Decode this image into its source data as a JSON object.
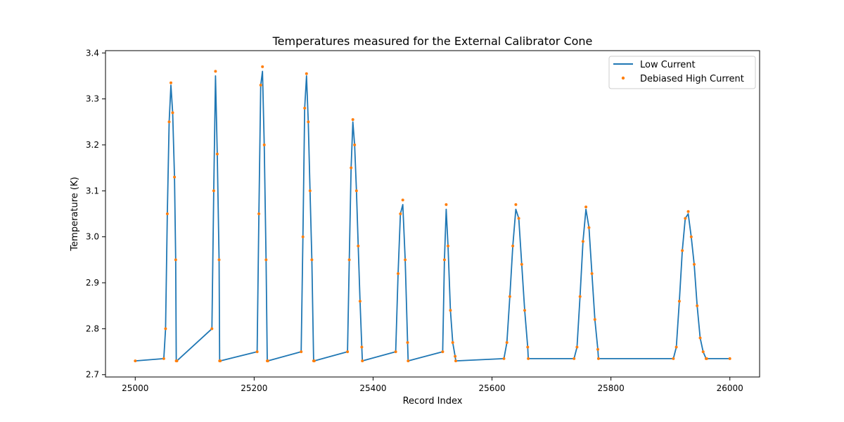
{
  "chart_data": {
    "type": "line",
    "title": "Temperatures measured for the External Calibrator Cone",
    "xlabel": "Record Index",
    "ylabel": "Temperature (K)",
    "xlim": [
      24950,
      26050
    ],
    "ylim": [
      2.695,
      3.405
    ],
    "x_ticks": [
      25000,
      25200,
      25400,
      25600,
      25800,
      26000
    ],
    "x_tick_labels": [
      "25000",
      "25200",
      "25400",
      "25600",
      "25800",
      "26000"
    ],
    "y_ticks": [
      2.7,
      2.8,
      2.9,
      3.0,
      3.1,
      3.2,
      3.3,
      3.4
    ],
    "y_tick_labels": [
      "2.7",
      "2.8",
      "2.9",
      "3.0",
      "3.1",
      "3.2",
      "3.3",
      "3.4"
    ],
    "grid": false,
    "legend_position": "top-right",
    "series": [
      {
        "name": "Low Current",
        "style": "line",
        "color": "#1f77b4",
        "x": [
          25000,
          25048,
          25051,
          25054,
          25057,
          25060,
          25063,
          25066,
          25068,
          25069,
          25070,
          25129,
          25132,
          25135,
          25138,
          25141,
          25142,
          25143,
          25205,
          25208,
          25211,
          25214,
          25217,
          25220,
          25222,
          25223,
          25279,
          25282,
          25285,
          25288,
          25291,
          25294,
          25297,
          25300,
          25301,
          25357,
          25360,
          25363,
          25366,
          25369,
          25372,
          25375,
          25378,
          25381,
          25382,
          25438,
          25442,
          25446,
          25450,
          25454,
          25458,
          25459,
          25517,
          25520,
          25523,
          25526,
          25530,
          25534,
          25538,
          25539,
          25620,
          25625,
          25630,
          25635,
          25640,
          25645,
          25650,
          25655,
          25660,
          25661,
          25738,
          25743,
          25748,
          25753,
          25758,
          25763,
          25768,
          25773,
          25778,
          25779,
          25905,
          25910,
          25915,
          25920,
          25925,
          25930,
          25935,
          25940,
          25945,
          25950,
          25955,
          25960,
          25961,
          26000
        ],
        "y": [
          2.73,
          2.735,
          2.8,
          3.05,
          3.25,
          3.33,
          3.27,
          3.13,
          2.95,
          2.73,
          2.73,
          2.8,
          3.1,
          3.35,
          3.18,
          2.95,
          2.73,
          2.73,
          2.75,
          3.05,
          3.33,
          3.36,
          3.2,
          2.95,
          2.73,
          2.73,
          2.75,
          3.0,
          3.28,
          3.35,
          3.25,
          3.1,
          2.95,
          2.73,
          2.73,
          2.75,
          2.95,
          3.15,
          3.25,
          3.2,
          3.1,
          2.98,
          2.86,
          2.76,
          2.73,
          2.75,
          2.92,
          3.05,
          3.07,
          2.95,
          2.77,
          2.73,
          2.75,
          2.95,
          3.06,
          2.98,
          2.84,
          2.77,
          2.74,
          2.73,
          2.735,
          2.77,
          2.87,
          2.98,
          3.06,
          3.04,
          2.94,
          2.84,
          2.76,
          2.735,
          2.735,
          2.76,
          2.87,
          2.99,
          3.06,
          3.02,
          2.92,
          2.82,
          2.755,
          2.735,
          2.735,
          2.76,
          2.86,
          2.97,
          3.04,
          3.05,
          3.0,
          2.94,
          2.85,
          2.78,
          2.75,
          2.735,
          2.735,
          2.735
        ]
      },
      {
        "name": "Debiased High Current",
        "style": "scatter",
        "color": "#ff7f0e",
        "x": [
          25000,
          25048,
          25051,
          25054,
          25057,
          25060,
          25063,
          25066,
          25068,
          25069,
          25070,
          25129,
          25132,
          25135,
          25138,
          25141,
          25142,
          25143,
          25205,
          25208,
          25211,
          25214,
          25217,
          25220,
          25222,
          25223,
          25279,
          25282,
          25285,
          25288,
          25291,
          25294,
          25297,
          25300,
          25301,
          25357,
          25360,
          25363,
          25366,
          25369,
          25372,
          25375,
          25378,
          25381,
          25382,
          25438,
          25442,
          25446,
          25450,
          25454,
          25458,
          25459,
          25517,
          25520,
          25523,
          25526,
          25530,
          25534,
          25538,
          25539,
          25620,
          25625,
          25630,
          25635,
          25640,
          25645,
          25650,
          25655,
          25660,
          25661,
          25738,
          25743,
          25748,
          25753,
          25758,
          25763,
          25768,
          25773,
          25778,
          25779,
          25905,
          25910,
          25915,
          25920,
          25925,
          25930,
          25935,
          25940,
          25945,
          25950,
          25955,
          25960,
          25961,
          26000
        ],
        "y": [
          2.73,
          2.735,
          2.8,
          3.05,
          3.25,
          3.335,
          3.27,
          3.13,
          2.95,
          2.73,
          2.73,
          2.8,
          3.1,
          3.36,
          3.18,
          2.95,
          2.73,
          2.73,
          2.75,
          3.05,
          3.33,
          3.37,
          3.2,
          2.95,
          2.73,
          2.73,
          2.75,
          3.0,
          3.28,
          3.355,
          3.25,
          3.1,
          2.95,
          2.73,
          2.73,
          2.75,
          2.95,
          3.15,
          3.255,
          3.2,
          3.1,
          2.98,
          2.86,
          2.76,
          2.73,
          2.75,
          2.92,
          3.05,
          3.08,
          2.95,
          2.77,
          2.73,
          2.75,
          2.95,
          3.07,
          2.98,
          2.84,
          2.77,
          2.74,
          2.73,
          2.735,
          2.77,
          2.87,
          2.98,
          3.07,
          3.04,
          2.94,
          2.84,
          2.76,
          2.735,
          2.735,
          2.76,
          2.87,
          2.99,
          3.065,
          3.02,
          2.92,
          2.82,
          2.755,
          2.735,
          2.735,
          2.76,
          2.86,
          2.97,
          3.04,
          3.055,
          3.0,
          2.94,
          2.85,
          2.78,
          2.75,
          2.735,
          2.735,
          2.735
        ]
      }
    ]
  }
}
